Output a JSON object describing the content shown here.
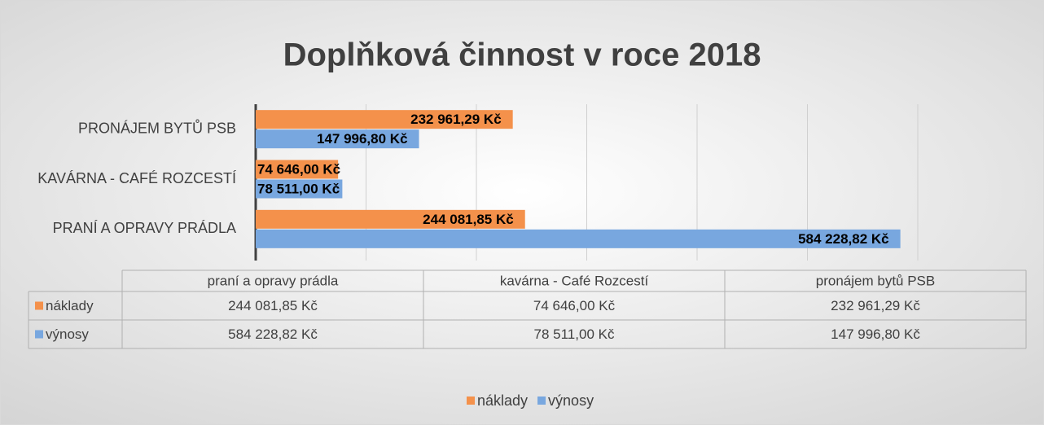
{
  "chart_data": {
    "type": "hbar",
    "title": "Doplňková činnost v roce 2018",
    "categories": [
      "praní a opravy prádla",
      "kavárna - Café Rozcestí",
      "pronájem bytů  PSB"
    ],
    "axis_labels": [
      "PRANÍ A OPRAVY PRÁDLA",
      "KAVÁRNA - CAFÉ ROZCESTÍ",
      "PRONÁJEM BYTŮ  PSB"
    ],
    "series": [
      {
        "name": "náklady",
        "color": "#f4914b",
        "values": [
          244081.85,
          74646,
          232961.29
        ],
        "value_labels": [
          "244 081,85 Kč",
          "74 646,00 Kč",
          "232 961,29 Kč"
        ]
      },
      {
        "name": "výnosy",
        "color": "#78a7df",
        "values": [
          584228.82,
          78511,
          147996.8
        ],
        "value_labels": [
          "584 228,82 Kč",
          "78 511,00 Kč",
          "147 996,80 Kč"
        ]
      }
    ],
    "xlim": [
      0,
      600000
    ],
    "xticks": [
      0,
      100000,
      200000,
      300000,
      400000,
      500000,
      600000
    ],
    "grid": true,
    "legend": "bottom"
  }
}
